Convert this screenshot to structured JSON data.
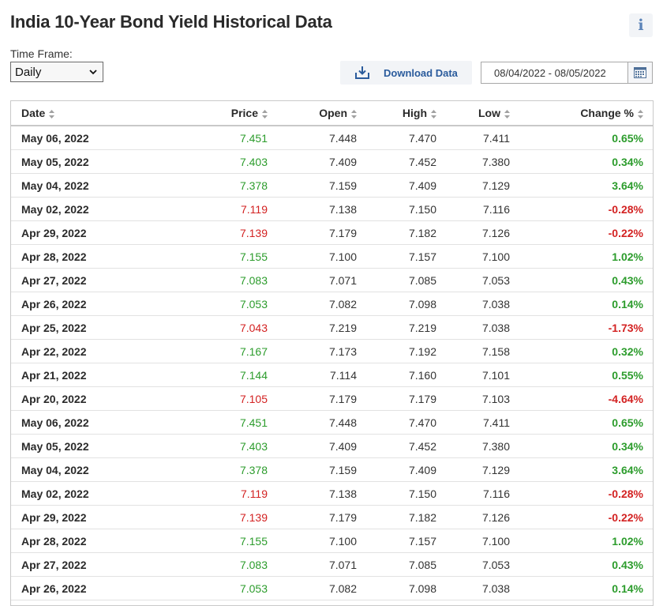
{
  "page": {
    "title": "India 10-Year Bond Yield Historical Data",
    "info_icon": "i"
  },
  "toolbar": {
    "timeframe_label": "Time Frame:",
    "timeframe_value": "Daily",
    "download_label": "Download Data",
    "date_range": "08/04/2022 - 08/05/2022"
  },
  "colors": {
    "positive": "#2c9c2c",
    "negative": "#d32222",
    "link": "#2a5b9c"
  },
  "table": {
    "headers": {
      "date": "Date",
      "price": "Price",
      "open": "Open",
      "high": "High",
      "low": "Low",
      "change": "Change %"
    },
    "rows": [
      {
        "date": "May 06, 2022",
        "price": "7.451",
        "open": "7.448",
        "high": "7.470",
        "low": "7.411",
        "change": "0.65%",
        "dir": "up"
      },
      {
        "date": "May 05, 2022",
        "price": "7.403",
        "open": "7.409",
        "high": "7.452",
        "low": "7.380",
        "change": "0.34%",
        "dir": "up"
      },
      {
        "date": "May 04, 2022",
        "price": "7.378",
        "open": "7.159",
        "high": "7.409",
        "low": "7.129",
        "change": "3.64%",
        "dir": "up"
      },
      {
        "date": "May 02, 2022",
        "price": "7.119",
        "open": "7.138",
        "high": "7.150",
        "low": "7.116",
        "change": "-0.28%",
        "dir": "down"
      },
      {
        "date": "Apr 29, 2022",
        "price": "7.139",
        "open": "7.179",
        "high": "7.182",
        "low": "7.126",
        "change": "-0.22%",
        "dir": "down"
      },
      {
        "date": "Apr 28, 2022",
        "price": "7.155",
        "open": "7.100",
        "high": "7.157",
        "low": "7.100",
        "change": "1.02%",
        "dir": "up"
      },
      {
        "date": "Apr 27, 2022",
        "price": "7.083",
        "open": "7.071",
        "high": "7.085",
        "low": "7.053",
        "change": "0.43%",
        "dir": "up"
      },
      {
        "date": "Apr 26, 2022",
        "price": "7.053",
        "open": "7.082",
        "high": "7.098",
        "low": "7.038",
        "change": "0.14%",
        "dir": "up"
      },
      {
        "date": "Apr 25, 2022",
        "price": "7.043",
        "open": "7.219",
        "high": "7.219",
        "low": "7.038",
        "change": "-1.73%",
        "dir": "down"
      },
      {
        "date": "Apr 22, 2022",
        "price": "7.167",
        "open": "7.173",
        "high": "7.192",
        "low": "7.158",
        "change": "0.32%",
        "dir": "up"
      },
      {
        "date": "Apr 21, 2022",
        "price": "7.144",
        "open": "7.114",
        "high": "7.160",
        "low": "7.101",
        "change": "0.55%",
        "dir": "up"
      },
      {
        "date": "Apr 20, 2022",
        "price": "7.105",
        "open": "7.179",
        "high": "7.179",
        "low": "7.103",
        "change": "-4.64%",
        "dir": "down"
      },
      {
        "date": "May 06, 2022",
        "price": "7.451",
        "open": "7.448",
        "high": "7.470",
        "low": "7.411",
        "change": "0.65%",
        "dir": "up"
      },
      {
        "date": "May 05, 2022",
        "price": "7.403",
        "open": "7.409",
        "high": "7.452",
        "low": "7.380",
        "change": "0.34%",
        "dir": "up"
      },
      {
        "date": "May 04, 2022",
        "price": "7.378",
        "open": "7.159",
        "high": "7.409",
        "low": "7.129",
        "change": "3.64%",
        "dir": "up"
      },
      {
        "date": "May 02, 2022",
        "price": "7.119",
        "open": "7.138",
        "high": "7.150",
        "low": "7.116",
        "change": "-0.28%",
        "dir": "down"
      },
      {
        "date": "Apr 29, 2022",
        "price": "7.139",
        "open": "7.179",
        "high": "7.182",
        "low": "7.126",
        "change": "-0.22%",
        "dir": "down"
      },
      {
        "date": "Apr 28, 2022",
        "price": "7.155",
        "open": "7.100",
        "high": "7.157",
        "low": "7.100",
        "change": "1.02%",
        "dir": "up"
      },
      {
        "date": "Apr 27, 2022",
        "price": "7.083",
        "open": "7.071",
        "high": "7.085",
        "low": "7.053",
        "change": "0.43%",
        "dir": "up"
      },
      {
        "date": "Apr 26, 2022",
        "price": "7.053",
        "open": "7.082",
        "high": "7.098",
        "low": "7.038",
        "change": "0.14%",
        "dir": "up"
      }
    ]
  }
}
